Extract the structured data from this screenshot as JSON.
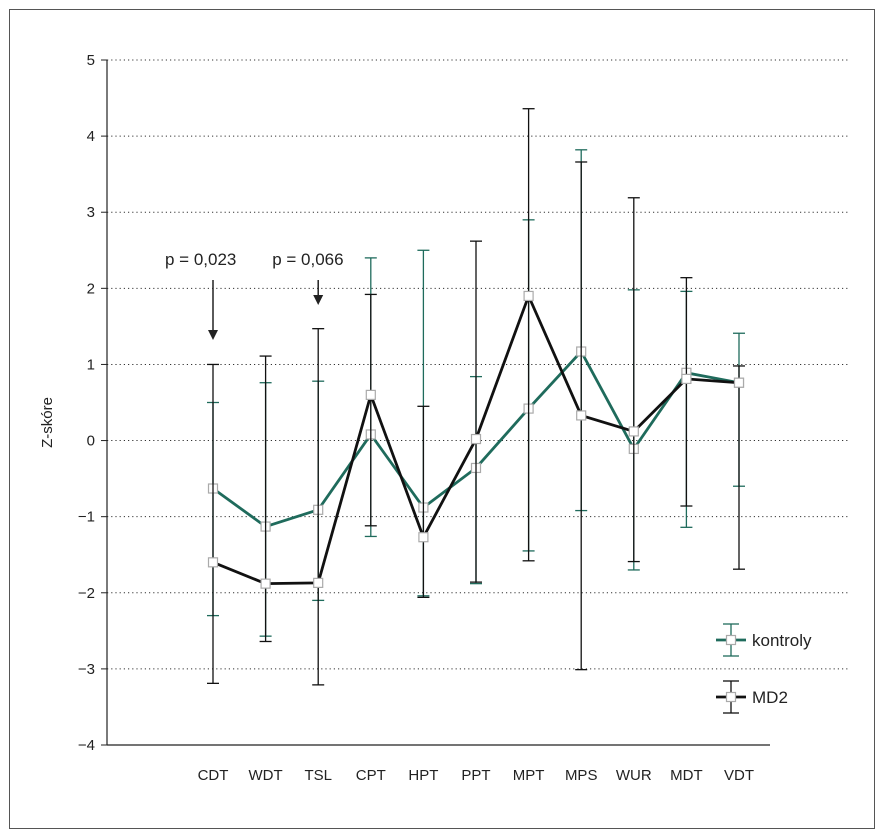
{
  "chart_data": {
    "type": "line",
    "title": "",
    "xlabel": "",
    "ylabel": "Z-skóre",
    "ylim": [
      -4,
      5
    ],
    "yticks": [
      "5",
      "4",
      "3",
      "2",
      "1",
      "0",
      "−1",
      "−2",
      "−3",
      "−4"
    ],
    "grid": "horizontal dotted",
    "legend_position": "bottom-right",
    "categories": [
      "CDT",
      "WDT",
      "TSL",
      "CPT",
      "HPT",
      "PPT",
      "MPT",
      "MPS",
      "WUR",
      "MDT",
      "VDT"
    ],
    "series": [
      {
        "name": "kontroly",
        "color": "#1f6b5c",
        "values": [
          -0.63,
          -1.13,
          -0.91,
          0.08,
          -0.88,
          -0.36,
          0.42,
          1.17,
          -0.11,
          0.89,
          0.76
        ],
        "error_low": [
          -2.3,
          -2.57,
          -2.1,
          -1.26,
          -2.04,
          -1.88,
          -1.45,
          -0.92,
          -1.7,
          -1.14,
          -0.6
        ],
        "error_high": [
          0.5,
          0.76,
          0.78,
          2.4,
          2.5,
          0.84,
          2.9,
          3.82,
          1.98,
          1.96,
          1.41
        ]
      },
      {
        "name": "MD2",
        "color": "#111111",
        "values": [
          -1.6,
          -1.88,
          -1.87,
          0.6,
          -1.27,
          0.02,
          1.9,
          0.33,
          0.12,
          0.81,
          0.76
        ],
        "error_low": [
          -3.19,
          -2.64,
          -3.21,
          -1.12,
          -2.06,
          -1.86,
          -1.58,
          -3.01,
          -1.59,
          -0.86,
          -1.69
        ],
        "error_high": [
          1.0,
          1.11,
          1.47,
          1.92,
          0.45,
          2.62,
          4.36,
          3.66,
          3.19,
          2.14,
          0.98
        ]
      }
    ],
    "annotations": [
      {
        "text": "p = 0,023",
        "category": "CDT"
      },
      {
        "text": "p = 0,066",
        "category": "TSL"
      }
    ]
  }
}
